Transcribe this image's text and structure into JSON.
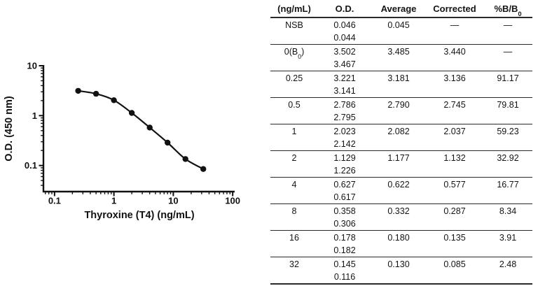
{
  "figure": {
    "background": "#ffffff",
    "ink_color": "#111111",
    "line_color": "#2a2a2a"
  },
  "chart_data": {
    "type": "scatter",
    "title": "",
    "xlabel": "Thyroxine (T4) (ng/mL)",
    "ylabel": "O.D. (450 nm)",
    "xscale": "log",
    "yscale": "log",
    "x": [
      0.25,
      0.5,
      1,
      2,
      4,
      8,
      16,
      32
    ],
    "y": [
      3.136,
      2.745,
      2.037,
      1.132,
      0.577,
      0.287,
      0.135,
      0.085
    ],
    "x_ticks": [
      0.1,
      1,
      10,
      100
    ],
    "x_tick_labels": [
      "0.1",
      "1",
      "10",
      "100"
    ],
    "y_ticks": [
      0.1,
      1,
      10
    ],
    "y_tick_labels": [
      "0.1",
      "1",
      "10"
    ],
    "xlim": [
      0.065,
      108
    ],
    "ylim": [
      0.03,
      10
    ],
    "grid": false,
    "legend": false,
    "marker": "circle",
    "line": "smooth",
    "color": "#111111"
  },
  "table": {
    "headers": [
      {
        "label": "(ng/mL)"
      },
      {
        "label": "O.D."
      },
      {
        "label": "Average"
      },
      {
        "label": "Corrected"
      },
      {
        "label": "%B/B",
        "sub": "0"
      }
    ],
    "rows": [
      {
        "conc": {
          "label": "NSB"
        },
        "od": [
          "0.046",
          "0.044"
        ],
        "average": "0.045",
        "corrected": "—",
        "pct": "—"
      },
      {
        "conc": {
          "label": "0(B",
          "sub": "0",
          "post": ")"
        },
        "od": [
          "3.502",
          "3.467"
        ],
        "average": "3.485",
        "corrected": "3.440",
        "pct": "—"
      },
      {
        "conc": {
          "label": "0.25"
        },
        "od": [
          "3.221",
          "3.141"
        ],
        "average": "3.181",
        "corrected": "3.136",
        "pct": "91.17"
      },
      {
        "conc": {
          "label": "0.5"
        },
        "od": [
          "2.786",
          "2.795"
        ],
        "average": "2.790",
        "corrected": "2.745",
        "pct": "79.81"
      },
      {
        "conc": {
          "label": "1"
        },
        "od": [
          "2.023",
          "2.142"
        ],
        "average": "2.082",
        "corrected": "2.037",
        "pct": "59.23"
      },
      {
        "conc": {
          "label": "2"
        },
        "od": [
          "1.129",
          "1.226"
        ],
        "average": "1.177",
        "corrected": "1.132",
        "pct": "32.92"
      },
      {
        "conc": {
          "label": "4"
        },
        "od": [
          "0.627",
          "0.617"
        ],
        "average": "0.622",
        "corrected": "0.577",
        "pct": "16.77"
      },
      {
        "conc": {
          "label": "8"
        },
        "od": [
          "0.358",
          "0.306"
        ],
        "average": "0.332",
        "corrected": "0.287",
        "pct": "8.34"
      },
      {
        "conc": {
          "label": "16"
        },
        "od": [
          "0.178",
          "0.182"
        ],
        "average": "0.180",
        "corrected": "0.135",
        "pct": "3.91"
      },
      {
        "conc": {
          "label": "32"
        },
        "od": [
          "0.145",
          "0.116"
        ],
        "average": "0.130",
        "corrected": "0.085",
        "pct": "2.48"
      }
    ]
  }
}
